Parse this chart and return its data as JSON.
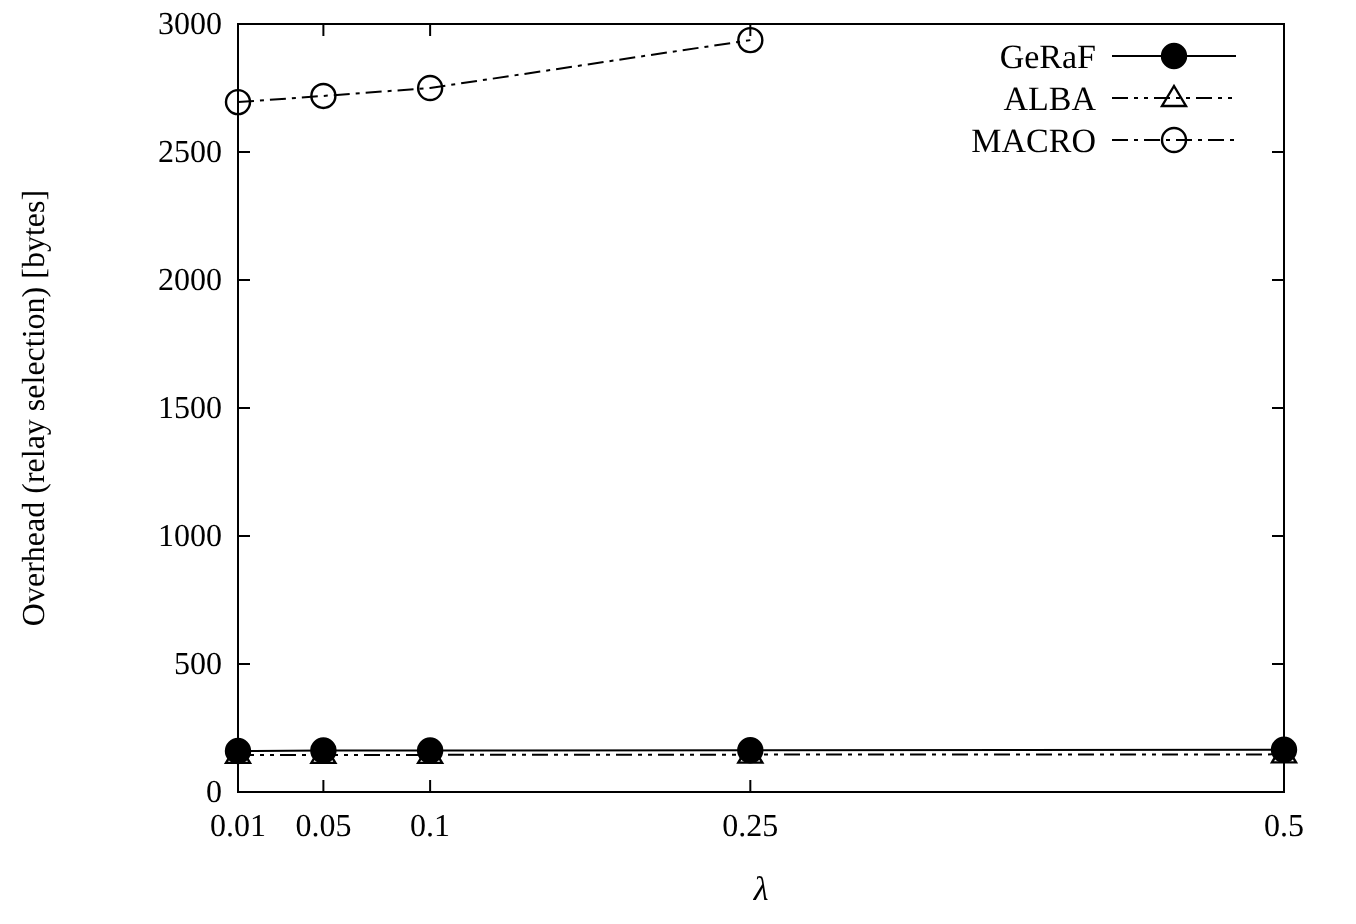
{
  "chart_data": {
    "type": "line",
    "xlabel": "λ",
    "ylabel": "Overhead (relay selection) [bytes]",
    "x": [
      0.01,
      0.05,
      0.1,
      0.25,
      0.5
    ],
    "xlim": [
      0.01,
      0.5
    ],
    "xticks": [
      0.01,
      0.05,
      0.1,
      0.25,
      0.5
    ],
    "ylim": [
      0,
      3000
    ],
    "yticks": [
      0,
      500,
      1000,
      1500,
      2000,
      2500,
      3000
    ],
    "grid": false,
    "legend": "top right",
    "series": [
      {
        "name": "GeRaF",
        "color": "#000000",
        "marker": "circle",
        "line_style": "solid",
        "values": [
          160,
          162,
          162,
          163,
          165
        ]
      },
      {
        "name": "ALBA",
        "color": "#000000",
        "marker": "triangle",
        "line_style": "dashed",
        "values": [
          145,
          145,
          145,
          146,
          147
        ]
      },
      {
        "name": "MACRO",
        "color": "#000000",
        "marker": "circle",
        "line_style": "dotted",
        "values": [
          2695,
          2719,
          2750,
          2937,
          null
        ]
      }
    ]
  }
}
